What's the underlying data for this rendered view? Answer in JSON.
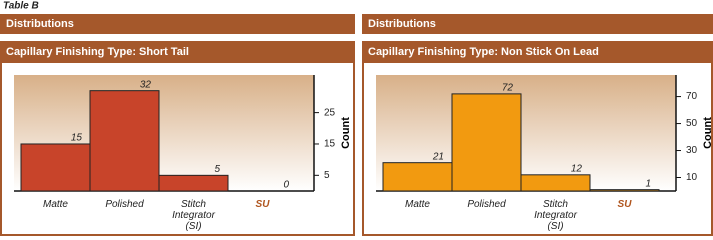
{
  "title": "Table B",
  "chart_data": [
    {
      "type": "bar",
      "header": "Distributions",
      "title": "Capillary Finishing Type: Short Tail",
      "categories": [
        "Matte",
        "Polished",
        "Stitch Integrator (SI)",
        "SU"
      ],
      "values": [
        15,
        32,
        5,
        0
      ],
      "color": "#c8442a",
      "category_label_colors": [
        "#222222",
        "#222222",
        "#222222",
        "#b0561f"
      ],
      "y_label": "Count",
      "ylim": [
        0,
        37
      ],
      "yticks": [
        5,
        15,
        25
      ]
    },
    {
      "type": "bar",
      "header": "Distributions",
      "title": "Capillary Finishing Type: Non Stick On Lead",
      "categories": [
        "Matte",
        "Polished",
        "Stitch Integrator (SI)",
        "SU"
      ],
      "values": [
        21,
        72,
        12,
        1
      ],
      "color": "#f29a10",
      "category_label_colors": [
        "#222222",
        "#222222",
        "#222222",
        "#b0561f"
      ],
      "y_label": "Count",
      "ylim": [
        0,
        86
      ],
      "yticks": [
        10,
        30,
        50,
        70
      ]
    }
  ]
}
